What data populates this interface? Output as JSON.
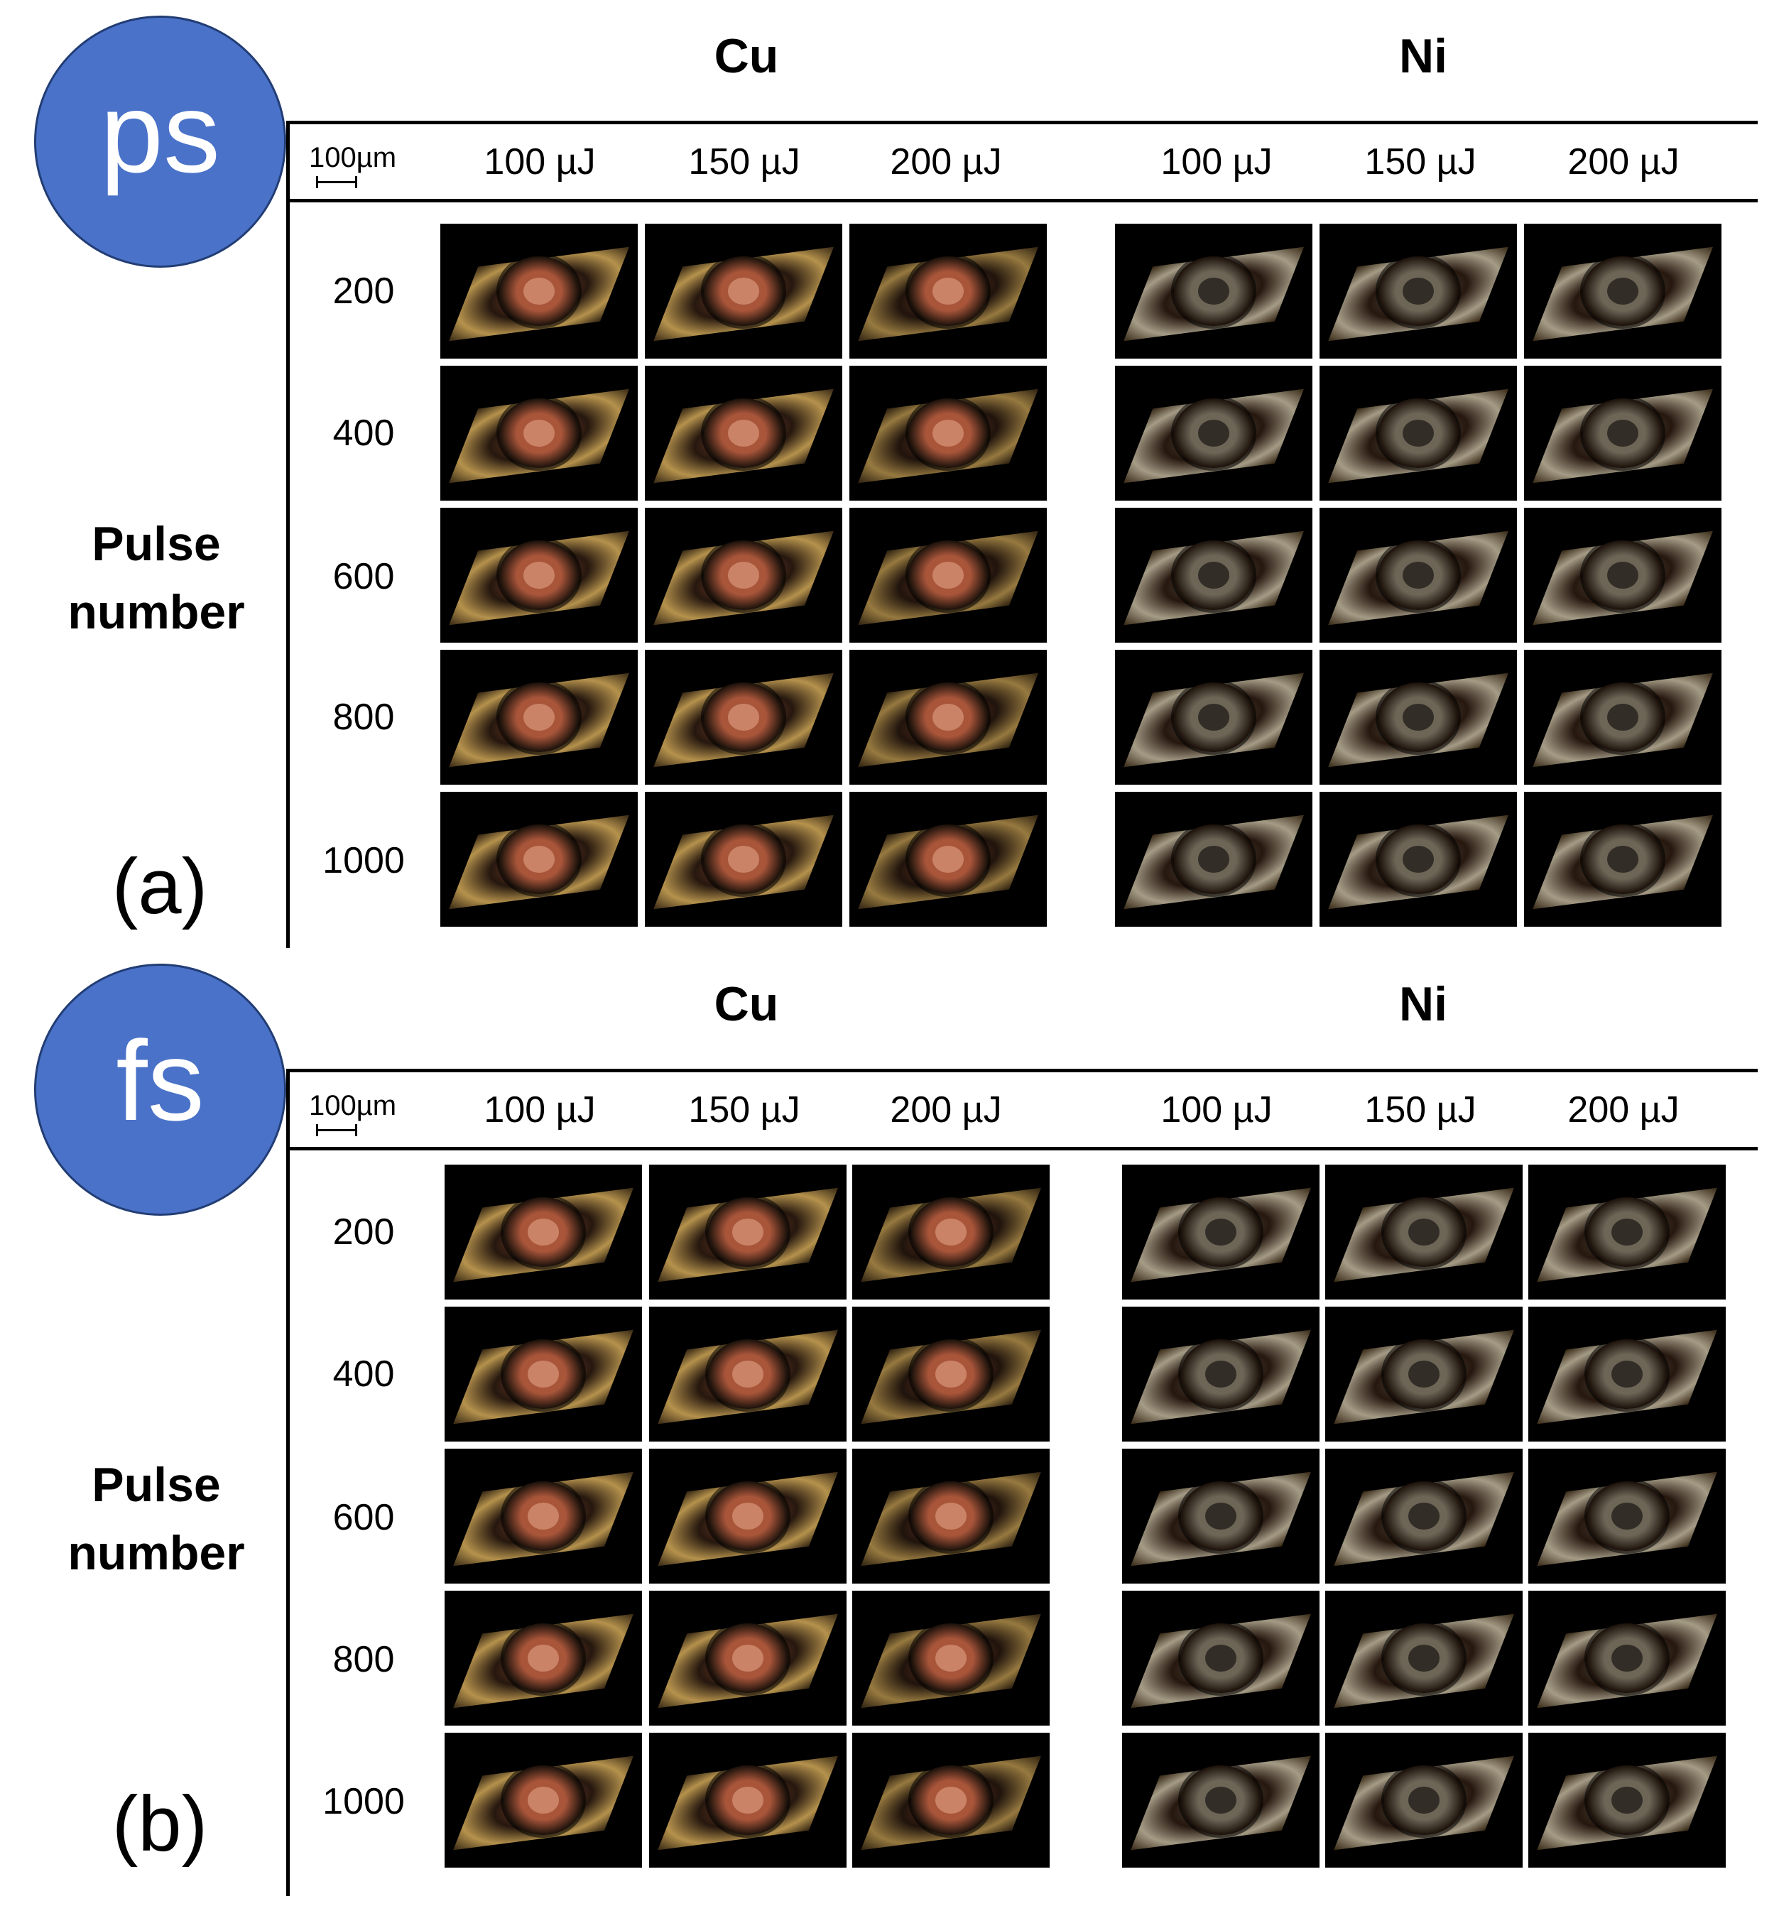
{
  "figure": {
    "panels": [
      {
        "id": "a",
        "laser": "ps",
        "panel_label": "(a)",
        "groups": [
          "Cu",
          "Ni"
        ],
        "scale_bar": "100µm",
        "energies": [
          "100 µJ",
          "150 µJ",
          "200 µJ"
        ],
        "axis_title": [
          "Pulse",
          "number"
        ],
        "pulse_numbers": [
          "200",
          "400",
          "600",
          "800",
          "1000"
        ]
      },
      {
        "id": "b",
        "laser": "fs",
        "panel_label": "(b)",
        "groups": [
          "Cu",
          "Ni"
        ],
        "scale_bar": "100µm",
        "energies": [
          "100 µJ",
          "150 µJ",
          "200 µJ"
        ],
        "axis_title": [
          "Pulse",
          "number"
        ],
        "pulse_numbers": [
          "200",
          "400",
          "600",
          "800",
          "1000"
        ]
      }
    ],
    "colors": {
      "badge": "#4a72c9",
      "cu_plate": "#c9a255",
      "cu_crater": "#a8553a",
      "ni_plate": "#b7ad95",
      "ni_crater": "#6d6657",
      "cell_background": "#000000"
    }
  }
}
